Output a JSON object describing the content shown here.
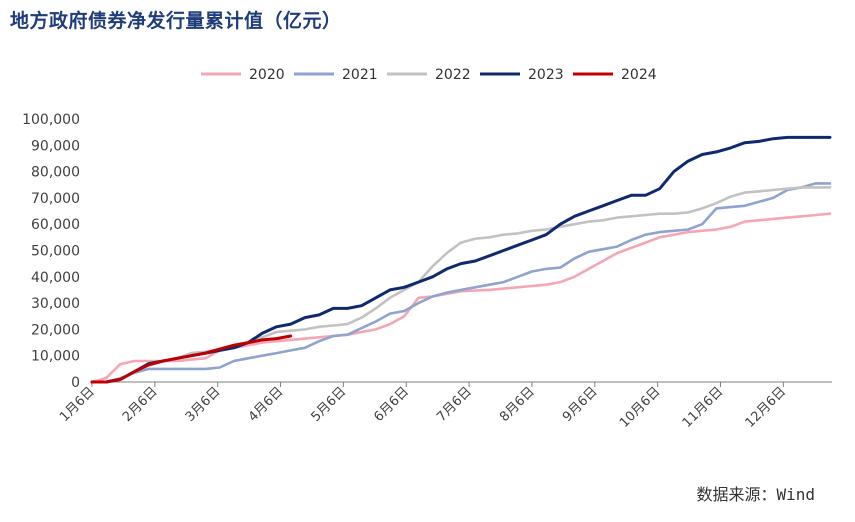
{
  "title": "地方政府债券净发行量累计值（亿元）",
  "source": "数据来源：Wind",
  "chart_data": {
    "type": "line",
    "title": "地方政府债券净发行量累计值（亿元）",
    "x_ticks": [
      "1月6日",
      "2月6日",
      "3月6日",
      "4月6日",
      "5月6日",
      "6月6日",
      "7月6日",
      "8月6日",
      "9月6日",
      "10月6日",
      "11月6日",
      "12月6日"
    ],
    "x_range_days": [
      0,
      365
    ],
    "y_ticks": [
      "0",
      "10,000",
      "20,000",
      "30,000",
      "40,000",
      "50,000",
      "60,000",
      "70,000",
      "80,000",
      "90,000",
      "100,000"
    ],
    "ylim": [
      0,
      100000
    ],
    "grid": false,
    "legend_position": "top",
    "series": [
      {
        "name": "2020",
        "color": "#f4a6b4",
        "x": [
          0,
          7,
          14,
          21,
          28,
          35,
          42,
          49,
          56,
          63,
          70,
          77,
          84,
          91,
          98,
          105,
          112,
          119,
          126,
          133,
          140,
          147,
          154,
          161,
          168,
          175,
          182,
          189,
          196,
          203,
          210,
          217,
          224,
          231,
          238,
          245,
          252,
          259,
          266,
          273,
          280,
          287,
          294,
          301,
          308,
          315,
          322,
          329,
          336,
          343,
          350,
          357,
          364
        ],
        "y": [
          0,
          1500,
          6800,
          8000,
          8000,
          8000,
          8000,
          8500,
          9000,
          12000,
          13000,
          14000,
          15000,
          15500,
          16000,
          16500,
          17000,
          17500,
          18000,
          19000,
          20000,
          22000,
          25000,
          32000,
          32500,
          33500,
          34500,
          34800,
          35000,
          35500,
          36000,
          36500,
          37000,
          38000,
          40000,
          43000,
          46000,
          49000,
          51000,
          53000,
          55000,
          56000,
          57000,
          57500,
          58000,
          59000,
          61000,
          61500,
          62000,
          62500,
          63000,
          63500,
          64000
        ]
      },
      {
        "name": "2021",
        "color": "#8ea3cf",
        "x": [
          0,
          7,
          14,
          21,
          28,
          35,
          42,
          49,
          56,
          63,
          70,
          77,
          84,
          91,
          98,
          105,
          112,
          119,
          126,
          133,
          140,
          147,
          154,
          161,
          168,
          175,
          182,
          189,
          196,
          203,
          210,
          217,
          224,
          231,
          238,
          245,
          252,
          259,
          266,
          273,
          280,
          287,
          294,
          301,
          308,
          315,
          322,
          329,
          336,
          343,
          350,
          357,
          364
        ],
        "y": [
          0,
          0,
          1500,
          3500,
          5000,
          5000,
          5000,
          5000,
          5000,
          5500,
          8000,
          9000,
          10000,
          11000,
          12000,
          13000,
          15500,
          17500,
          18000,
          20500,
          23000,
          26000,
          27000,
          30000,
          32500,
          34000,
          35000,
          36000,
          37000,
          38000,
          40000,
          42000,
          43000,
          43500,
          47000,
          49500,
          50500,
          51500,
          54000,
          56000,
          57000,
          57500,
          58000,
          60000,
          66000,
          66500,
          67000,
          68500,
          70000,
          73000,
          74000,
          75500,
          75500
        ]
      },
      {
        "name": "2022",
        "color": "#c2c2c2",
        "x": [
          0,
          7,
          14,
          21,
          28,
          35,
          42,
          49,
          56,
          63,
          70,
          77,
          84,
          91,
          98,
          105,
          112,
          119,
          126,
          133,
          140,
          147,
          154,
          161,
          168,
          175,
          182,
          189,
          196,
          203,
          210,
          217,
          224,
          231,
          238,
          245,
          252,
          259,
          266,
          273,
          280,
          287,
          294,
          301,
          308,
          315,
          322,
          329,
          336,
          343,
          350,
          357,
          364
        ],
        "y": [
          0,
          0,
          1000,
          4000,
          7000,
          8000,
          9000,
          11000,
          11500,
          12500,
          14000,
          15000,
          17000,
          19000,
          19500,
          20000,
          21000,
          21500,
          22000,
          24500,
          28000,
          32000,
          35000,
          38000,
          44000,
          49000,
          53000,
          54500,
          55000,
          56000,
          56500,
          57500,
          58000,
          59000,
          60000,
          61000,
          61500,
          62500,
          63000,
          63500,
          64000,
          64000,
          64500,
          66000,
          68000,
          70500,
          72000,
          72500,
          73000,
          73500,
          74000,
          74000,
          74000
        ]
      },
      {
        "name": "2023",
        "color": "#0e2a6e",
        "x": [
          0,
          7,
          14,
          21,
          28,
          35,
          42,
          49,
          56,
          63,
          70,
          77,
          84,
          91,
          98,
          105,
          112,
          119,
          126,
          133,
          140,
          147,
          154,
          161,
          168,
          175,
          182,
          189,
          196,
          203,
          210,
          217,
          224,
          231,
          238,
          245,
          252,
          259,
          266,
          273,
          280,
          287,
          294,
          301,
          308,
          315,
          322,
          329,
          336,
          343,
          350,
          357,
          364
        ],
        "y": [
          0,
          0,
          1000,
          4000,
          7000,
          8000,
          9000,
          10000,
          11000,
          12000,
          13000,
          15000,
          18500,
          21000,
          22000,
          24500,
          25500,
          28000,
          28000,
          29000,
          32000,
          35000,
          36000,
          38000,
          40000,
          43000,
          45000,
          46000,
          48000,
          50000,
          52000,
          54000,
          56000,
          60000,
          63000,
          65000,
          67000,
          69000,
          71000,
          71000,
          73500,
          80000,
          84000,
          86500,
          87500,
          89000,
          91000,
          91500,
          92500,
          93000,
          93000,
          93000,
          93000
        ]
      },
      {
        "name": "2024",
        "color": "#c00000",
        "x": [
          0,
          7,
          14,
          21,
          28,
          35,
          42,
          49,
          56,
          63,
          70,
          77,
          84,
          91,
          98
        ],
        "y": [
          0,
          0,
          1000,
          4000,
          6500,
          8000,
          9000,
          10000,
          11000,
          12500,
          14000,
          15000,
          16000,
          16500,
          17500
        ]
      }
    ]
  }
}
